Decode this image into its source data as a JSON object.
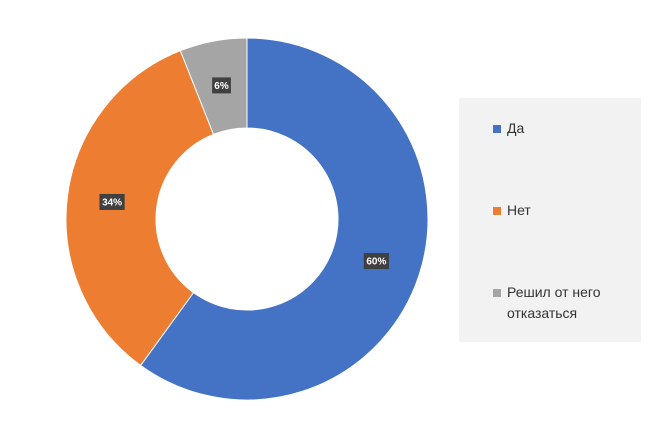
{
  "chart_data": {
    "type": "pie",
    "variant": "donut",
    "title": "",
    "categories": [
      "Да",
      "Нет",
      "Решил от него отказаться"
    ],
    "values": [
      60,
      34,
      6
    ],
    "data_labels": [
      "60%",
      "34%",
      "6%"
    ],
    "colors": [
      "#4472C4",
      "#ED7D31",
      "#A5A5A5"
    ],
    "legend_position": "right"
  }
}
